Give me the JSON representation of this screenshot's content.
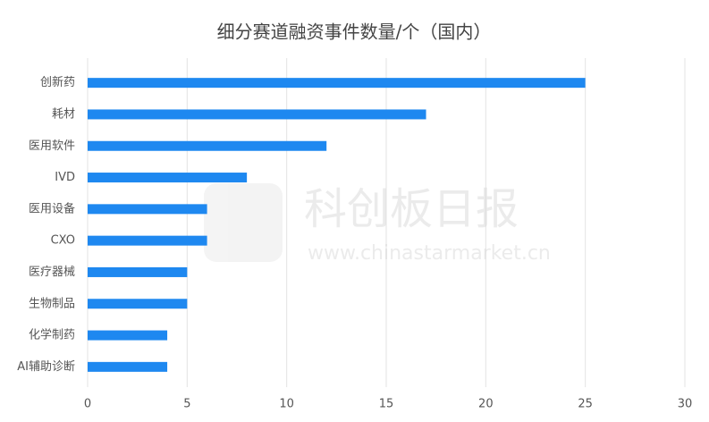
{
  "chart_data": {
    "type": "hbar",
    "title": "细分赛道融资事件数量/个（国内）",
    "categories": [
      "创新药",
      "耗材",
      "医用软件",
      "IVD",
      "医用设备",
      "CXO",
      "医疗器械",
      "生物制品",
      "化学制药",
      "AI辅助诊断"
    ],
    "values": [
      25,
      17,
      12,
      8,
      6,
      6,
      5,
      5,
      4,
      4
    ],
    "color": "#1e88f0",
    "xlim": [
      0,
      30
    ],
    "xticks": [
      0,
      5,
      10,
      15,
      20,
      25,
      30
    ],
    "grid": true,
    "watermark": {
      "name": "科创板日报",
      "url": "www.chinastarmarket.cn"
    }
  }
}
